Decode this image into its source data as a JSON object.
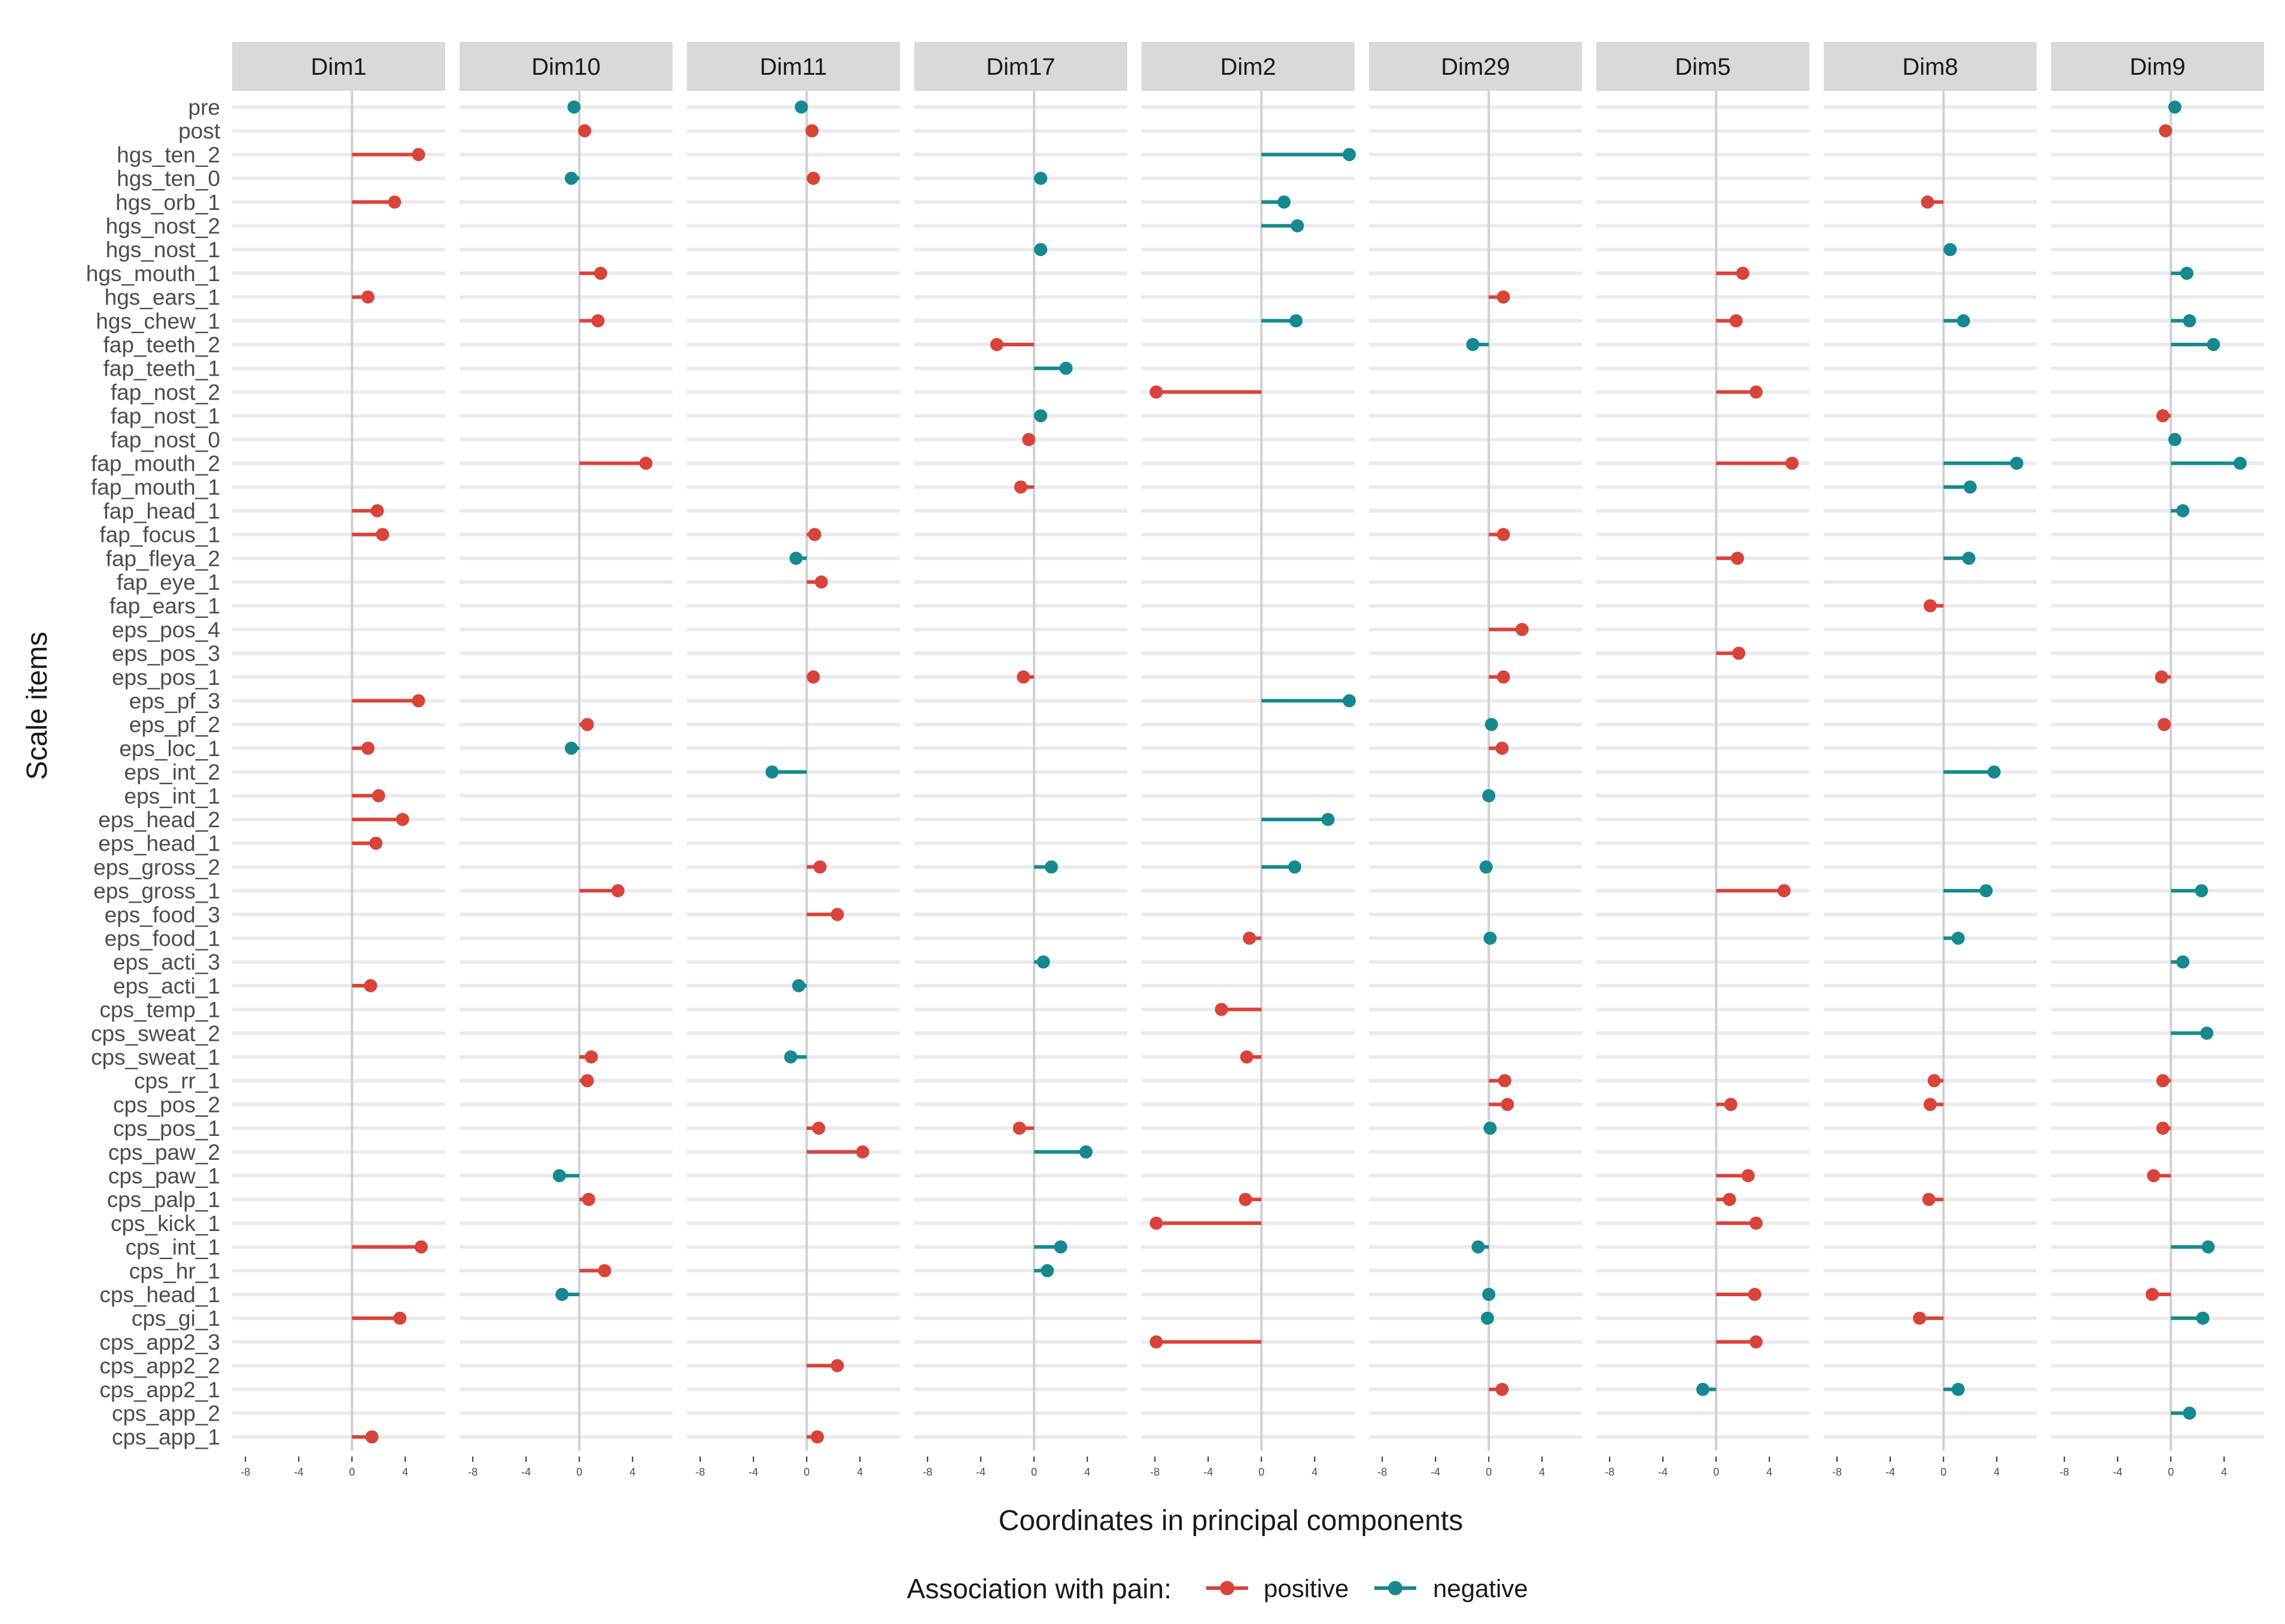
{
  "chart_data": {
    "type": "lollipop",
    "facets": [
      "Dim1",
      "Dim10",
      "Dim11",
      "Dim17",
      "Dim2",
      "Dim29",
      "Dim5",
      "Dim8",
      "Dim9"
    ],
    "items": [
      "pre",
      "post",
      "hgs_ten_2",
      "hgs_ten_0",
      "hgs_orb_1",
      "hgs_nost_2",
      "hgs_nost_1",
      "hgs_mouth_1",
      "hgs_ears_1",
      "hgs_chew_1",
      "fap_teeth_2",
      "fap_teeth_1",
      "fap_nost_2",
      "fap_nost_1",
      "fap_nost_0",
      "fap_mouth_2",
      "fap_mouth_1",
      "fap_head_1",
      "fap_focus_1",
      "fap_fleya_2",
      "fap_eye_1",
      "fap_ears_1",
      "eps_pos_4",
      "eps_pos_3",
      "eps_pos_1",
      "eps_pf_3",
      "eps_pf_2",
      "eps_loc_1",
      "eps_int_2",
      "eps_int_1",
      "eps_head_2",
      "eps_head_1",
      "eps_gross_2",
      "eps_gross_1",
      "eps_food_3",
      "eps_food_1",
      "eps_acti_3",
      "eps_acti_1",
      "cps_temp_1",
      "cps_sweat_2",
      "cps_sweat_1",
      "cps_rr_1",
      "cps_pos_2",
      "cps_pos_1",
      "cps_paw_2",
      "cps_paw_1",
      "cps_palp_1",
      "cps_kick_1",
      "cps_int_1",
      "cps_hr_1",
      "cps_head_1",
      "cps_gi_1",
      "cps_app2_3",
      "cps_app2_2",
      "cps_app2_1",
      "cps_app_2",
      "cps_app_1"
    ],
    "xlim": [
      -9,
      7
    ],
    "x_ticks": [
      -8,
      -4,
      0,
      4
    ],
    "x_tick_labels": [
      "-8",
      "-4",
      "0",
      "4"
    ],
    "xlabel": "Coordinates in principal components",
    "ylabel": "Scale items",
    "legend": {
      "title": "Association with pain:",
      "position": "bottom",
      "entries": [
        {
          "name": "positive",
          "color": "#D8433A"
        },
        {
          "name": "negative",
          "color": "#17898E"
        }
      ]
    },
    "colors": {
      "positive": "#D8433A",
      "negative": "#17898E",
      "strip": "#D9D9D9",
      "grid": "#EBEBEB",
      "zero_line": "#D0D0D0"
    },
    "points": {
      "Dim1": [
        {
          "item": "hgs_ten_2",
          "x": 5.0,
          "assoc": "positive"
        },
        {
          "item": "hgs_orb_1",
          "x": 3.2,
          "assoc": "positive"
        },
        {
          "item": "hgs_ears_1",
          "x": 1.2,
          "assoc": "positive"
        },
        {
          "item": "fap_head_1",
          "x": 1.9,
          "assoc": "positive"
        },
        {
          "item": "fap_focus_1",
          "x": 2.3,
          "assoc": "positive"
        },
        {
          "item": "eps_pf_3",
          "x": 5.0,
          "assoc": "positive"
        },
        {
          "item": "eps_loc_1",
          "x": 1.2,
          "assoc": "positive"
        },
        {
          "item": "eps_int_1",
          "x": 2.0,
          "assoc": "positive"
        },
        {
          "item": "eps_head_2",
          "x": 3.8,
          "assoc": "positive"
        },
        {
          "item": "eps_head_1",
          "x": 1.8,
          "assoc": "positive"
        },
        {
          "item": "eps_acti_1",
          "x": 1.4,
          "assoc": "positive"
        },
        {
          "item": "cps_int_1",
          "x": 5.2,
          "assoc": "positive"
        },
        {
          "item": "cps_gi_1",
          "x": 3.6,
          "assoc": "positive"
        },
        {
          "item": "cps_app_1",
          "x": 1.5,
          "assoc": "positive"
        }
      ],
      "Dim10": [
        {
          "item": "pre",
          "x": -0.4,
          "assoc": "negative"
        },
        {
          "item": "post",
          "x": 0.4,
          "assoc": "positive"
        },
        {
          "item": "hgs_ten_0",
          "x": -0.6,
          "assoc": "negative"
        },
        {
          "item": "hgs_mouth_1",
          "x": 1.6,
          "assoc": "positive"
        },
        {
          "item": "hgs_chew_1",
          "x": 1.4,
          "assoc": "positive"
        },
        {
          "item": "fap_mouth_2",
          "x": 5.0,
          "assoc": "positive"
        },
        {
          "item": "eps_pf_2",
          "x": 0.6,
          "assoc": "positive"
        },
        {
          "item": "eps_loc_1",
          "x": -0.6,
          "assoc": "negative"
        },
        {
          "item": "eps_gross_1",
          "x": 2.9,
          "assoc": "positive"
        },
        {
          "item": "cps_sweat_1",
          "x": 0.9,
          "assoc": "positive"
        },
        {
          "item": "cps_rr_1",
          "x": 0.6,
          "assoc": "positive"
        },
        {
          "item": "cps_paw_1",
          "x": -1.5,
          "assoc": "negative"
        },
        {
          "item": "cps_palp_1",
          "x": 0.7,
          "assoc": "positive"
        },
        {
          "item": "cps_hr_1",
          "x": 1.9,
          "assoc": "positive"
        },
        {
          "item": "cps_head_1",
          "x": -1.3,
          "assoc": "negative"
        }
      ],
      "Dim11": [
        {
          "item": "pre",
          "x": -0.4,
          "assoc": "negative"
        },
        {
          "item": "post",
          "x": 0.4,
          "assoc": "positive"
        },
        {
          "item": "hgs_ten_0",
          "x": 0.5,
          "assoc": "positive"
        },
        {
          "item": "fap_focus_1",
          "x": 0.6,
          "assoc": "positive"
        },
        {
          "item": "fap_fleya_2",
          "x": -0.8,
          "assoc": "negative"
        },
        {
          "item": "fap_eye_1",
          "x": 1.1,
          "assoc": "positive"
        },
        {
          "item": "eps_pos_1",
          "x": 0.5,
          "assoc": "positive"
        },
        {
          "item": "eps_int_2",
          "x": -2.6,
          "assoc": "negative"
        },
        {
          "item": "eps_gross_2",
          "x": 1.0,
          "assoc": "positive"
        },
        {
          "item": "eps_food_3",
          "x": 2.3,
          "assoc": "positive"
        },
        {
          "item": "eps_acti_1",
          "x": -0.6,
          "assoc": "negative"
        },
        {
          "item": "cps_sweat_1",
          "x": -1.2,
          "assoc": "negative"
        },
        {
          "item": "cps_pos_1",
          "x": 0.9,
          "assoc": "positive"
        },
        {
          "item": "cps_paw_2",
          "x": 4.2,
          "assoc": "positive"
        },
        {
          "item": "cps_app2_2",
          "x": 2.3,
          "assoc": "positive"
        },
        {
          "item": "cps_app_1",
          "x": 0.8,
          "assoc": "positive"
        }
      ],
      "Dim17": [
        {
          "item": "hgs_ten_0",
          "x": 0.5,
          "assoc": "negative"
        },
        {
          "item": "hgs_nost_1",
          "x": 0.5,
          "assoc": "negative"
        },
        {
          "item": "fap_teeth_2",
          "x": -2.8,
          "assoc": "positive"
        },
        {
          "item": "fap_teeth_1",
          "x": 2.4,
          "assoc": "negative"
        },
        {
          "item": "fap_nost_1",
          "x": 0.5,
          "assoc": "negative"
        },
        {
          "item": "fap_nost_0",
          "x": -0.4,
          "assoc": "positive"
        },
        {
          "item": "fap_mouth_1",
          "x": -1.0,
          "assoc": "positive"
        },
        {
          "item": "eps_pos_1",
          "x": -0.8,
          "assoc": "positive"
        },
        {
          "item": "eps_gross_2",
          "x": 1.3,
          "assoc": "negative"
        },
        {
          "item": "eps_acti_3",
          "x": 0.7,
          "assoc": "negative"
        },
        {
          "item": "cps_pos_1",
          "x": -1.1,
          "assoc": "positive"
        },
        {
          "item": "cps_paw_2",
          "x": 3.9,
          "assoc": "negative"
        },
        {
          "item": "cps_int_1",
          "x": 2.0,
          "assoc": "negative"
        },
        {
          "item": "cps_hr_1",
          "x": 1.0,
          "assoc": "negative"
        }
      ],
      "Dim2": [
        {
          "item": "hgs_ten_2",
          "x": 6.6,
          "assoc": "negative"
        },
        {
          "item": "hgs_orb_1",
          "x": 1.7,
          "assoc": "negative"
        },
        {
          "item": "hgs_nost_2",
          "x": 2.7,
          "assoc": "negative"
        },
        {
          "item": "hgs_chew_1",
          "x": 2.6,
          "assoc": "negative"
        },
        {
          "item": "fap_nost_2",
          "x": -7.9,
          "assoc": "positive"
        },
        {
          "item": "eps_pf_3",
          "x": 6.6,
          "assoc": "negative"
        },
        {
          "item": "eps_head_2",
          "x": 5.0,
          "assoc": "negative"
        },
        {
          "item": "eps_gross_2",
          "x": 2.5,
          "assoc": "negative"
        },
        {
          "item": "eps_food_1",
          "x": -0.9,
          "assoc": "positive"
        },
        {
          "item": "cps_temp_1",
          "x": -3.0,
          "assoc": "positive"
        },
        {
          "item": "cps_sweat_1",
          "x": -1.1,
          "assoc": "positive"
        },
        {
          "item": "cps_palp_1",
          "x": -1.2,
          "assoc": "positive"
        },
        {
          "item": "cps_kick_1",
          "x": -7.9,
          "assoc": "positive"
        },
        {
          "item": "cps_app2_3",
          "x": -7.9,
          "assoc": "positive"
        }
      ],
      "Dim29": [
        {
          "item": "hgs_ears_1",
          "x": 1.1,
          "assoc": "positive"
        },
        {
          "item": "fap_teeth_2",
          "x": -1.2,
          "assoc": "negative"
        },
        {
          "item": "fap_focus_1",
          "x": 1.1,
          "assoc": "positive"
        },
        {
          "item": "eps_pos_4",
          "x": 2.5,
          "assoc": "positive"
        },
        {
          "item": "eps_pos_1",
          "x": 1.1,
          "assoc": "positive"
        },
        {
          "item": "eps_pf_2",
          "x": 0.2,
          "assoc": "negative"
        },
        {
          "item": "eps_loc_1",
          "x": 1.0,
          "assoc": "positive"
        },
        {
          "item": "eps_int_1",
          "x": 0.0,
          "assoc": "negative"
        },
        {
          "item": "eps_gross_2",
          "x": -0.2,
          "assoc": "negative"
        },
        {
          "item": "eps_food_1",
          "x": 0.1,
          "assoc": "negative"
        },
        {
          "item": "cps_rr_1",
          "x": 1.2,
          "assoc": "positive"
        },
        {
          "item": "cps_pos_2",
          "x": 1.4,
          "assoc": "positive"
        },
        {
          "item": "cps_pos_1",
          "x": 0.1,
          "assoc": "negative"
        },
        {
          "item": "cps_int_1",
          "x": -0.8,
          "assoc": "negative"
        },
        {
          "item": "cps_head_1",
          "x": 0.0,
          "assoc": "negative"
        },
        {
          "item": "cps_gi_1",
          "x": -0.1,
          "assoc": "negative"
        },
        {
          "item": "cps_app2_1",
          "x": 1.0,
          "assoc": "positive"
        }
      ],
      "Dim5": [
        {
          "item": "hgs_mouth_1",
          "x": 2.0,
          "assoc": "positive"
        },
        {
          "item": "hgs_chew_1",
          "x": 1.5,
          "assoc": "positive"
        },
        {
          "item": "fap_nost_2",
          "x": 3.0,
          "assoc": "positive"
        },
        {
          "item": "fap_mouth_2",
          "x": 5.7,
          "assoc": "positive"
        },
        {
          "item": "fap_fleya_2",
          "x": 1.6,
          "assoc": "positive"
        },
        {
          "item": "eps_pos_3",
          "x": 1.7,
          "assoc": "positive"
        },
        {
          "item": "eps_gross_1",
          "x": 5.1,
          "assoc": "positive"
        },
        {
          "item": "cps_pos_2",
          "x": 1.1,
          "assoc": "positive"
        },
        {
          "item": "cps_paw_1",
          "x": 2.4,
          "assoc": "positive"
        },
        {
          "item": "cps_palp_1",
          "x": 1.0,
          "assoc": "positive"
        },
        {
          "item": "cps_kick_1",
          "x": 3.0,
          "assoc": "positive"
        },
        {
          "item": "cps_head_1",
          "x": 2.9,
          "assoc": "positive"
        },
        {
          "item": "cps_app2_3",
          "x": 3.0,
          "assoc": "positive"
        },
        {
          "item": "cps_app2_1",
          "x": -1.0,
          "assoc": "negative"
        }
      ],
      "Dim8": [
        {
          "item": "hgs_orb_1",
          "x": -1.2,
          "assoc": "positive"
        },
        {
          "item": "hgs_nost_1",
          "x": 0.5,
          "assoc": "negative"
        },
        {
          "item": "hgs_chew_1",
          "x": 1.5,
          "assoc": "negative"
        },
        {
          "item": "fap_mouth_2",
          "x": 5.5,
          "assoc": "negative"
        },
        {
          "item": "fap_mouth_1",
          "x": 2.0,
          "assoc": "negative"
        },
        {
          "item": "fap_fleya_2",
          "x": 1.9,
          "assoc": "negative"
        },
        {
          "item": "fap_ears_1",
          "x": -1.0,
          "assoc": "positive"
        },
        {
          "item": "eps_int_2",
          "x": 3.8,
          "assoc": "negative"
        },
        {
          "item": "eps_gross_1",
          "x": 3.2,
          "assoc": "negative"
        },
        {
          "item": "eps_food_1",
          "x": 1.1,
          "assoc": "negative"
        },
        {
          "item": "cps_rr_1",
          "x": -0.7,
          "assoc": "positive"
        },
        {
          "item": "cps_pos_2",
          "x": -1.0,
          "assoc": "positive"
        },
        {
          "item": "cps_palp_1",
          "x": -1.1,
          "assoc": "positive"
        },
        {
          "item": "cps_gi_1",
          "x": -1.8,
          "assoc": "positive"
        },
        {
          "item": "cps_app2_1",
          "x": 1.1,
          "assoc": "negative"
        }
      ],
      "Dim9": [
        {
          "item": "pre",
          "x": 0.3,
          "assoc": "negative"
        },
        {
          "item": "post",
          "x": -0.4,
          "assoc": "positive"
        },
        {
          "item": "hgs_mouth_1",
          "x": 1.2,
          "assoc": "negative"
        },
        {
          "item": "hgs_chew_1",
          "x": 1.4,
          "assoc": "negative"
        },
        {
          "item": "fap_teeth_2",
          "x": 3.2,
          "assoc": "negative"
        },
        {
          "item": "fap_nost_1",
          "x": -0.6,
          "assoc": "positive"
        },
        {
          "item": "fap_nost_0",
          "x": 0.3,
          "assoc": "negative"
        },
        {
          "item": "fap_mouth_2",
          "x": 5.2,
          "assoc": "negative"
        },
        {
          "item": "fap_head_1",
          "x": 0.9,
          "assoc": "negative"
        },
        {
          "item": "eps_pos_1",
          "x": -0.7,
          "assoc": "positive"
        },
        {
          "item": "eps_pf_2",
          "x": -0.5,
          "assoc": "positive"
        },
        {
          "item": "eps_gross_1",
          "x": 2.3,
          "assoc": "negative"
        },
        {
          "item": "eps_acti_3",
          "x": 0.9,
          "assoc": "negative"
        },
        {
          "item": "cps_sweat_2",
          "x": 2.7,
          "assoc": "negative"
        },
        {
          "item": "cps_rr_1",
          "x": -0.6,
          "assoc": "positive"
        },
        {
          "item": "cps_pos_1",
          "x": -0.6,
          "assoc": "positive"
        },
        {
          "item": "cps_paw_1",
          "x": -1.3,
          "assoc": "positive"
        },
        {
          "item": "cps_int_1",
          "x": 2.8,
          "assoc": "negative"
        },
        {
          "item": "cps_head_1",
          "x": -1.4,
          "assoc": "positive"
        },
        {
          "item": "cps_gi_1",
          "x": 2.4,
          "assoc": "negative"
        },
        {
          "item": "cps_app_2",
          "x": 1.4,
          "assoc": "negative"
        }
      ]
    }
  }
}
